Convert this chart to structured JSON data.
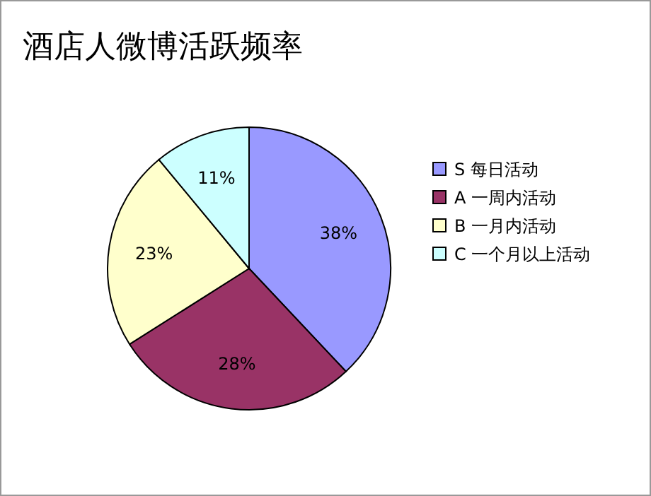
{
  "chart_data": {
    "type": "pie",
    "title": "酒店人微博活跃频率",
    "categories": [
      "S 每日活动",
      "A 一周内活动",
      "B 一月内活动",
      "C 一个月以上活动"
    ],
    "values": [
      38,
      28,
      23,
      11
    ],
    "colors": [
      "#9999ff",
      "#993366",
      "#ffffcc",
      "#ccffff"
    ],
    "value_labels": [
      "38%",
      "28%",
      "23%",
      "11%"
    ],
    "legend": "right"
  }
}
